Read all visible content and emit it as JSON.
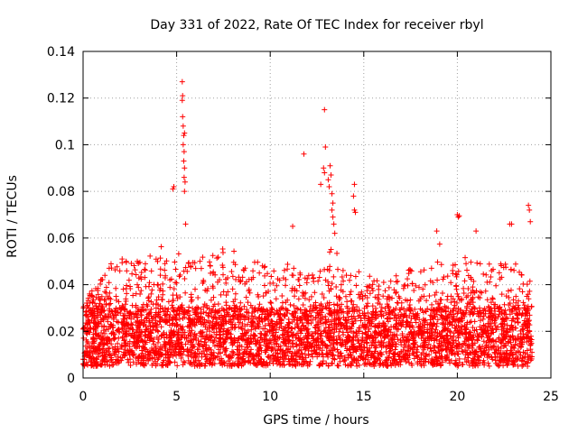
{
  "chart_data": {
    "type": "scatter",
    "title": "Day 331 of 2022, Rate Of TEC Index for receiver rbyl",
    "xlabel": "GPS time / hours",
    "ylabel": "ROTI / TECUs",
    "xlim": [
      0,
      25
    ],
    "ylim": [
      0,
      0.14
    ],
    "x_ticks": [
      0,
      5,
      10,
      15,
      20,
      25
    ],
    "x_tick_labels": [
      "0",
      "5",
      "10",
      "15",
      "20",
      "25"
    ],
    "y_ticks": [
      0,
      0.02,
      0.04,
      0.06,
      0.08,
      0.1,
      0.12,
      0.14
    ],
    "y_tick_labels": [
      "0",
      "0.02",
      "0.04",
      "0.06",
      "0.08",
      "0.1",
      "0.12",
      "0.14"
    ],
    "grid": true,
    "marker": "+",
    "color": "#ff0000",
    "series": [
      {
        "name": "ROTI",
        "x_range": [
          0,
          24
        ],
        "baseline_band": [
          0.005,
          0.03
        ],
        "typical_max": 0.05,
        "envelope": [
          {
            "x": 0.0,
            "y": 0.032
          },
          {
            "x": 1.0,
            "y": 0.045
          },
          {
            "x": 2.0,
            "y": 0.055
          },
          {
            "x": 3.0,
            "y": 0.05
          },
          {
            "x": 4.0,
            "y": 0.058
          },
          {
            "x": 4.7,
            "y": 0.06
          },
          {
            "x": 5.5,
            "y": 0.05
          },
          {
            "x": 6.0,
            "y": 0.055
          },
          {
            "x": 7.0,
            "y": 0.056
          },
          {
            "x": 8.0,
            "y": 0.055
          },
          {
            "x": 9.0,
            "y": 0.055
          },
          {
            "x": 10.0,
            "y": 0.045
          },
          {
            "x": 11.0,
            "y": 0.05
          },
          {
            "x": 12.0,
            "y": 0.045
          },
          {
            "x": 13.0,
            "y": 0.062
          },
          {
            "x": 14.0,
            "y": 0.05
          },
          {
            "x": 15.0,
            "y": 0.045
          },
          {
            "x": 16.0,
            "y": 0.042
          },
          {
            "x": 17.0,
            "y": 0.045
          },
          {
            "x": 18.0,
            "y": 0.05
          },
          {
            "x": 18.8,
            "y": 0.06
          },
          {
            "x": 20.0,
            "y": 0.05
          },
          {
            "x": 21.0,
            "y": 0.055
          },
          {
            "x": 22.0,
            "y": 0.05
          },
          {
            "x": 23.0,
            "y": 0.055
          },
          {
            "x": 24.0,
            "y": 0.05
          }
        ],
        "outliers": [
          {
            "x": 4.8,
            "y": 0.081
          },
          {
            "x": 4.85,
            "y": 0.082
          },
          {
            "x": 5.3,
            "y": 0.127
          },
          {
            "x": 5.32,
            "y": 0.121
          },
          {
            "x": 5.3,
            "y": 0.119
          },
          {
            "x": 5.32,
            "y": 0.112
          },
          {
            "x": 5.35,
            "y": 0.108
          },
          {
            "x": 5.38,
            "y": 0.104
          },
          {
            "x": 5.42,
            "y": 0.105
          },
          {
            "x": 5.35,
            "y": 0.1
          },
          {
            "x": 5.4,
            "y": 0.097
          },
          {
            "x": 5.38,
            "y": 0.093
          },
          {
            "x": 5.42,
            "y": 0.09
          },
          {
            "x": 5.4,
            "y": 0.086
          },
          {
            "x": 5.45,
            "y": 0.084
          },
          {
            "x": 5.42,
            "y": 0.08
          },
          {
            "x": 5.48,
            "y": 0.066
          },
          {
            "x": 11.2,
            "y": 0.065
          },
          {
            "x": 11.8,
            "y": 0.096
          },
          {
            "x": 12.9,
            "y": 0.115
          },
          {
            "x": 12.95,
            "y": 0.099
          },
          {
            "x": 12.85,
            "y": 0.09
          },
          {
            "x": 12.9,
            "y": 0.088
          },
          {
            "x": 13.2,
            "y": 0.091
          },
          {
            "x": 13.25,
            "y": 0.087
          },
          {
            "x": 13.1,
            "y": 0.085
          },
          {
            "x": 13.15,
            "y": 0.082
          },
          {
            "x": 13.3,
            "y": 0.079
          },
          {
            "x": 13.35,
            "y": 0.075
          },
          {
            "x": 13.3,
            "y": 0.072
          },
          {
            "x": 13.35,
            "y": 0.069
          },
          {
            "x": 13.4,
            "y": 0.066
          },
          {
            "x": 13.45,
            "y": 0.062
          },
          {
            "x": 12.7,
            "y": 0.083
          },
          {
            "x": 14.5,
            "y": 0.083
          },
          {
            "x": 14.45,
            "y": 0.078
          },
          {
            "x": 14.5,
            "y": 0.072
          },
          {
            "x": 14.55,
            "y": 0.071
          },
          {
            "x": 20.0,
            "y": 0.07
          },
          {
            "x": 20.05,
            "y": 0.069
          },
          {
            "x": 20.1,
            "y": 0.0695
          },
          {
            "x": 22.8,
            "y": 0.066
          },
          {
            "x": 22.9,
            "y": 0.066
          },
          {
            "x": 23.8,
            "y": 0.074
          },
          {
            "x": 23.85,
            "y": 0.072
          },
          {
            "x": 23.9,
            "y": 0.067
          },
          {
            "x": 21.0,
            "y": 0.063
          },
          {
            "x": 18.9,
            "y": 0.063
          }
        ]
      }
    ]
  }
}
